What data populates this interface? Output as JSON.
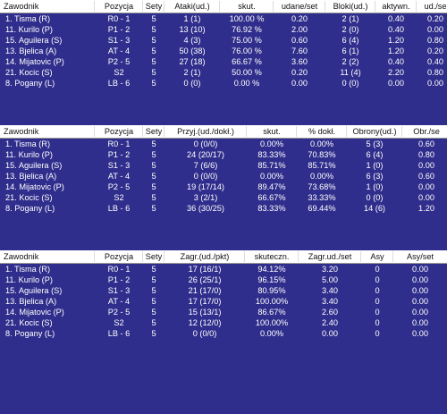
{
  "tables": [
    {
      "columns": [
        "Zawodnik",
        "Pozycja",
        "Sety",
        "Ataki(ud.)",
        "skut.",
        "udane/set",
        "Bloki(ud.)",
        "aktywn.",
        "ud./se"
      ],
      "rows": [
        [
          "1. Tisma (R)",
          "R0 - 1",
          "5",
          "1 (1)",
          "100.00 %",
          "0.20",
          "2 (1)",
          "0.40",
          "0.20"
        ],
        [
          "11. Kurilo (P)",
          "P1 - 2",
          "5",
          "13 (10)",
          "76.92 %",
          "2.00",
          "2 (0)",
          "0.40",
          "0.00"
        ],
        [
          "15. Aguilera (S)",
          "S1 - 3",
          "5",
          "4 (3)",
          "75.00 %",
          "0.60",
          "6 (4)",
          "1.20",
          "0.80"
        ],
        [
          "13. Bjelica (A)",
          "AT - 4",
          "5",
          "50 (38)",
          "76.00 %",
          "7.60",
          "6 (1)",
          "1.20",
          "0.20"
        ],
        [
          "14. Mijatovic (P)",
          "P2 - 5",
          "5",
          "27 (18)",
          "66.67 %",
          "3.60",
          "2 (2)",
          "0.40",
          "0.40"
        ],
        [
          "21. Kocic (S)",
          "S2",
          "5",
          "2 (1)",
          "50.00 %",
          "0.20",
          "11 (4)",
          "2.20",
          "0.80"
        ],
        [
          "8. Pogany (L)",
          "LB - 6",
          "5",
          "0 (0)",
          "0.00 %",
          "0.00",
          "0 (0)",
          "0.00",
          "0.00"
        ]
      ]
    },
    {
      "columns": [
        "Zawodnik",
        "Pozycja",
        "Sety",
        "Przyj.(ud./dokł.)",
        "skut.",
        "% dokł.",
        "Obrony(ud.)",
        "Obr./se"
      ],
      "rows": [
        [
          "1. Tisma (R)",
          "R0 - 1",
          "5",
          "0 (0/0)",
          "0.00%",
          "0.00%",
          "5 (3)",
          "0.60"
        ],
        [
          "11. Kurilo (P)",
          "P1 - 2",
          "5",
          "24 (20/17)",
          "83.33%",
          "70.83%",
          "6 (4)",
          "0.80"
        ],
        [
          "15. Aguilera (S)",
          "S1 - 3",
          "5",
          "7 (6/6)",
          "85.71%",
          "85.71%",
          "1 (0)",
          "0.00"
        ],
        [
          "13. Bjelica (A)",
          "AT - 4",
          "5",
          "0 (0/0)",
          "0.00%",
          "0.00%",
          "6 (3)",
          "0.60"
        ],
        [
          "14. Mijatovic (P)",
          "P2 - 5",
          "5",
          "19 (17/14)",
          "89.47%",
          "73.68%",
          "1 (0)",
          "0.00"
        ],
        [
          "21. Kocic (S)",
          "S2",
          "5",
          "3 (2/1)",
          "66.67%",
          "33.33%",
          "0 (0)",
          "0.00"
        ],
        [
          "8. Pogany (L)",
          "LB - 6",
          "5",
          "36 (30/25)",
          "83.33%",
          "69.44%",
          "14 (6)",
          "1.20"
        ]
      ]
    },
    {
      "columns": [
        "Zawodnik",
        "Pozycja",
        "Sety",
        "Zagr.(ud./pkt)",
        "skuteczn.",
        "Zagr.ud./set",
        "Asy",
        "Asy/set"
      ],
      "rows": [
        [
          "1. Tisma (R)",
          "R0 - 1",
          "5",
          "17 (16/1)",
          "94.12%",
          "3.20",
          "0",
          "0.00"
        ],
        [
          "11. Kurilo (P)",
          "P1 - 2",
          "5",
          "26 (25/1)",
          "96.15%",
          "5.00",
          "0",
          "0.00"
        ],
        [
          "15. Aguilera (S)",
          "S1 - 3",
          "5",
          "21 (17/0)",
          "80.95%",
          "3.40",
          "0",
          "0.00"
        ],
        [
          "13. Bjelica (A)",
          "AT - 4",
          "5",
          "17 (17/0)",
          "100.00%",
          "3.40",
          "0",
          "0.00"
        ],
        [
          "14. Mijatovic (P)",
          "P2 - 5",
          "5",
          "15 (13/1)",
          "86.67%",
          "2.60",
          "0",
          "0.00"
        ],
        [
          "21. Kocic (S)",
          "S2",
          "5",
          "12 (12/0)",
          "100.00%",
          "2.40",
          "0",
          "0.00"
        ],
        [
          "8. Pogany (L)",
          "LB - 6",
          "5",
          "0 (0/0)",
          "0.00%",
          "0.00",
          "0",
          "0.00"
        ]
      ]
    }
  ]
}
